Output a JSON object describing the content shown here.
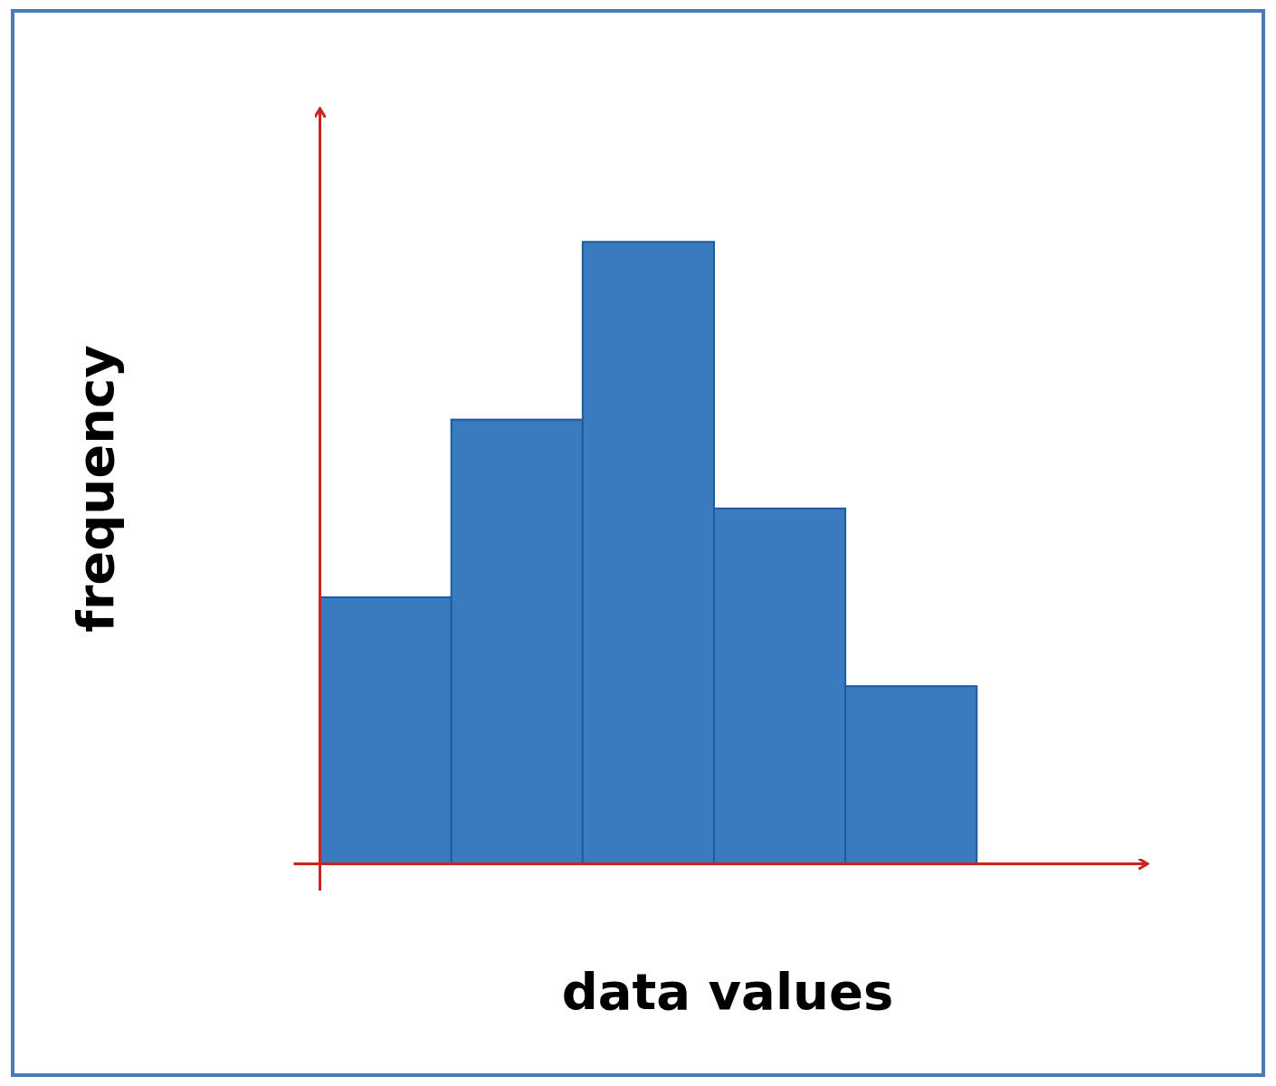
{
  "chart_data": {
    "type": "bar",
    "categories": [
      null,
      null,
      null,
      null,
      null
    ],
    "values": [
      3,
      5,
      7,
      4,
      2
    ],
    "color": "#3a7bbf",
    "xlabel": "data values",
    "ylabel": "frequency",
    "ylim": [
      -0.3,
      8.5
    ],
    "tick_labels": false,
    "grid": false
  }
}
